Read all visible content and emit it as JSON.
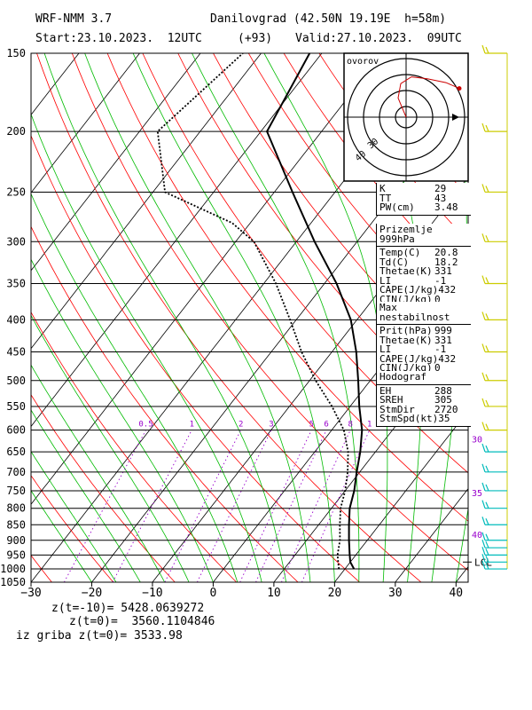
{
  "header": {
    "line1_left": "WRF-NMM 3.7",
    "line1_right": "Danilovgrad (42.50N 19.19E  h=58m)",
    "line2_start": "Start:23.10.2023.  12UTC",
    "line2_lead": "(+93)",
    "line2_valid": "Valid:27.10.2023.  09UTC"
  },
  "footer": {
    "line1": "z(t=-10)= 5428.0639272",
    "line2": "z(t=0)=  3560.1104846",
    "line3": "iz griba z(t=0)= 3533.98"
  },
  "hodograph": {
    "label": "ovorov",
    "ring_labels": [
      "30",
      "40"
    ],
    "wind_trace": [
      {
        "u": 0.0,
        "v": 0.0
      },
      {
        "u": -1.5,
        "v": 2.0
      },
      {
        "u": -1.0,
        "v": 3.5
      },
      {
        "u": 1.0,
        "v": 4.2
      },
      {
        "u": 4.0,
        "v": 4.0
      },
      {
        "u": 7.5,
        "v": 3.6
      },
      {
        "u": 10.0,
        "v": 3.0
      }
    ]
  },
  "panels": {
    "indices": {
      "rows": [
        {
          "k": "K",
          "v": "29"
        },
        {
          "k": "TT",
          "v": "43"
        },
        {
          "k": "PW(cm)",
          "v": "3.48"
        }
      ]
    },
    "surface": {
      "title": "Prizemlje 999hPa",
      "rows": [
        {
          "k": "Temp(C)",
          "v": "20.8"
        },
        {
          "k": "Td(C)",
          "v": "18.2"
        },
        {
          "k": "Thetae(K)",
          "v": "331"
        },
        {
          "k": "LI",
          "v": "-1"
        },
        {
          "k": "CAPE(J/kg)",
          "v": "432"
        },
        {
          "k": "CIN(J/kg)",
          "v": "0"
        }
      ]
    },
    "max_instability": {
      "title": "Max nestabilnost",
      "rows": [
        {
          "k": "Prit(hPa)",
          "v": "999"
        },
        {
          "k": "Thetae(K)",
          "v": "331"
        },
        {
          "k": "LI",
          "v": "-1"
        },
        {
          "k": "CAPE(J/kg)",
          "v": "432"
        },
        {
          "k": "CIN(J/kg)",
          "v": "0"
        }
      ]
    },
    "hodograf": {
      "title": "Hodograf",
      "rows": [
        {
          "k": "EH",
          "v": "288"
        },
        {
          "k": "SREH",
          "v": "305"
        },
        {
          "k": "StmDir",
          "v": "2720"
        },
        {
          "k": "StmSpd(kt)",
          "v": "35"
        }
      ]
    }
  },
  "colors": {
    "isotherm": "#000000",
    "dry_adiabat": "#ff0000",
    "moist_adiabat": "#00bb00",
    "mixing_ratio": "#9900cc",
    "wind_staff": "#cccc00",
    "barb_upper": "#cccc00",
    "barb_lower": "#00bbbb",
    "hodo_trace": "#cc0000",
    "height_label": "#9900cc"
  },
  "chart_data": {
    "type": "line",
    "title": "",
    "xlabel": "",
    "ylabel": "",
    "x_ticks": [
      -30,
      -20,
      -10,
      0,
      10,
      20,
      30,
      40
    ],
    "y_ticks": [
      150,
      200,
      250,
      300,
      350,
      400,
      450,
      500,
      550,
      600,
      650,
      700,
      750,
      800,
      850,
      900,
      950,
      1000,
      1050
    ],
    "xlim": [
      -30,
      42
    ],
    "ylim": [
      1050,
      150
    ],
    "y_scale": "log",
    "mixing_ratio_labels": [
      "0.5",
      "1",
      "2",
      "3",
      "5",
      "6",
      "8",
      "1"
    ],
    "height_labels": [
      "30",
      "35",
      "40"
    ],
    "lcl_label": "LCL",
    "lcl_pressure": 975,
    "series": [
      {
        "style": "solid",
        "points": [
          {
            "p": 1000,
            "t": 21.5
          },
          {
            "p": 975,
            "t": 20.0
          },
          {
            "p": 950,
            "t": 19.0
          },
          {
            "p": 900,
            "t": 17.0
          },
          {
            "p": 850,
            "t": 15.0
          },
          {
            "p": 800,
            "t": 13.0
          },
          {
            "p": 750,
            "t": 11.5
          },
          {
            "p": 700,
            "t": 9.5
          },
          {
            "p": 650,
            "t": 7.5
          },
          {
            "p": 600,
            "t": 5.0
          },
          {
            "p": 550,
            "t": 1.5
          },
          {
            "p": 500,
            "t": -2.0
          },
          {
            "p": 450,
            "t": -6.0
          },
          {
            "p": 400,
            "t": -11.0
          },
          {
            "p": 350,
            "t": -18.0
          },
          {
            "p": 300,
            "t": -27.0
          },
          {
            "p": 250,
            "t": -37.0
          },
          {
            "p": 200,
            "t": -49.0
          },
          {
            "p": 150,
            "t": -52.0
          }
        ]
      },
      {
        "style": "dotted",
        "points": [
          {
            "p": 1000,
            "t": 19.0
          },
          {
            "p": 975,
            "t": 18.0
          },
          {
            "p": 950,
            "t": 17.0
          },
          {
            "p": 900,
            "t": 15.5
          },
          {
            "p": 850,
            "t": 13.5
          },
          {
            "p": 800,
            "t": 11.5
          },
          {
            "p": 750,
            "t": 10.0
          },
          {
            "p": 700,
            "t": 8.0
          },
          {
            "p": 650,
            "t": 5.5
          },
          {
            "p": 600,
            "t": 2.0
          },
          {
            "p": 550,
            "t": -3.0
          },
          {
            "p": 500,
            "t": -9.0
          },
          {
            "p": 450,
            "t": -15.0
          },
          {
            "p": 400,
            "t": -21.0
          },
          {
            "p": 350,
            "t": -28.0
          },
          {
            "p": 300,
            "t": -37.0
          },
          {
            "p": 280,
            "t": -43.0
          },
          {
            "p": 250,
            "t": -58.0
          },
          {
            "p": 200,
            "t": -67.0
          },
          {
            "p": 150,
            "t": -63.0
          }
        ]
      }
    ]
  }
}
